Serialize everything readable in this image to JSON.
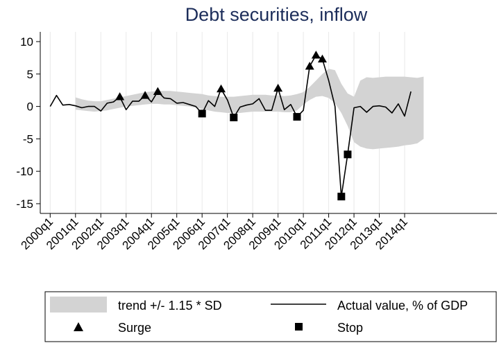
{
  "chart_data": {
    "type": "line",
    "title": "Debt securities, inflow",
    "xlabel": "",
    "ylabel": "",
    "x_tick_labels": [
      "2000q1",
      "2001q1",
      "2002q1",
      "2003q1",
      "2004q1",
      "2005q1",
      "2006q1",
      "2007q1",
      "2008q1",
      "2009q1",
      "2010q1",
      "2011q1",
      "2012q1",
      "2013q1",
      "2014q1"
    ],
    "y_ticks": [
      10,
      5,
      0,
      -5,
      -10,
      -15
    ],
    "ylim": [
      -16.5,
      11.5
    ],
    "grid": "vertical",
    "legend_position": "bottom",
    "colors": {
      "band": "#d3d3d3",
      "line": "#000000",
      "markers": "#000000",
      "title": "#1c2d5a",
      "grid": "#e8e8e8"
    },
    "series": [
      {
        "name": "trend +/- 1.15 * SD",
        "kind": "band",
        "start_quarter_index": 4,
        "upper": [
          1.4,
          1.1,
          0.9,
          0.8,
          0.8,
          1.0,
          1.2,
          1.4,
          1.6,
          1.8,
          2.0,
          2.2,
          2.3,
          2.4,
          2.4,
          2.4,
          2.3,
          2.2,
          2.1,
          2.0,
          1.9,
          1.7,
          1.6,
          1.5,
          1.5,
          1.5,
          1.6,
          1.7,
          1.8,
          1.8,
          1.8,
          1.7,
          1.7,
          1.6,
          1.7,
          1.9,
          2.2,
          3.0,
          4.0,
          5.0,
          5.8,
          5.6,
          3.5,
          2.0,
          1.5,
          4.0,
          4.5,
          4.4,
          4.5,
          4.6,
          4.6,
          4.6,
          4.6,
          4.5,
          4.4,
          4.6
        ],
        "lower": [
          -0.5,
          -0.6,
          -0.7,
          -0.8,
          -0.7,
          -0.6,
          -0.4,
          -0.2,
          0.0,
          0.1,
          0.2,
          0.3,
          0.4,
          0.4,
          0.3,
          0.3,
          0.2,
          0.1,
          0.0,
          -0.2,
          -0.4,
          -0.6,
          -0.8,
          -0.9,
          -1.0,
          -1.0,
          -1.0,
          -0.9,
          -0.8,
          -0.8,
          -0.8,
          -0.8,
          -0.8,
          -0.9,
          -0.9,
          -0.6,
          0.3,
          1.0,
          1.5,
          1.6,
          1.3,
          0.5,
          -1.0,
          -3.0,
          -5.5,
          -6.2,
          -6.5,
          -6.6,
          -6.5,
          -6.4,
          -6.3,
          -6.2,
          -6.0,
          -5.9,
          -5.7,
          -5.0
        ]
      },
      {
        "name": "Actual value, % of GDP",
        "kind": "line",
        "values": [
          0.0,
          1.7,
          0.2,
          0.3,
          0.1,
          -0.2,
          0.0,
          0.0,
          -0.7,
          0.5,
          0.7,
          1.5,
          -0.5,
          0.8,
          0.8,
          1.7,
          0.7,
          2.3,
          1.3,
          1.2,
          0.5,
          0.6,
          0.3,
          0.0,
          -1.1,
          0.9,
          0.0,
          2.7,
          1.0,
          -1.7,
          -0.1,
          0.2,
          0.4,
          1.2,
          -0.6,
          -0.6,
          2.8,
          -0.5,
          0.3,
          -1.6,
          -0.6,
          6.2,
          7.9,
          7.3,
          4.0,
          0.0,
          -13.9,
          -7.4,
          -0.2,
          0.0,
          -0.9,
          0.0,
          0.1,
          -0.1,
          -1.0,
          0.4,
          -1.5,
          2.3
        ]
      },
      {
        "name": "Surge",
        "kind": "markers",
        "marker": "triangle",
        "quarter_indices": [
          11,
          15,
          17,
          27,
          36,
          41,
          42,
          43
        ],
        "values": [
          1.5,
          1.7,
          2.3,
          2.7,
          2.8,
          6.2,
          7.9,
          7.3
        ]
      },
      {
        "name": "Stop",
        "kind": "markers",
        "marker": "square",
        "quarter_indices": [
          24,
          29,
          39,
          46,
          47
        ],
        "values": [
          -1.1,
          -1.7,
          -1.6,
          -13.9,
          -7.4
        ]
      }
    ]
  }
}
